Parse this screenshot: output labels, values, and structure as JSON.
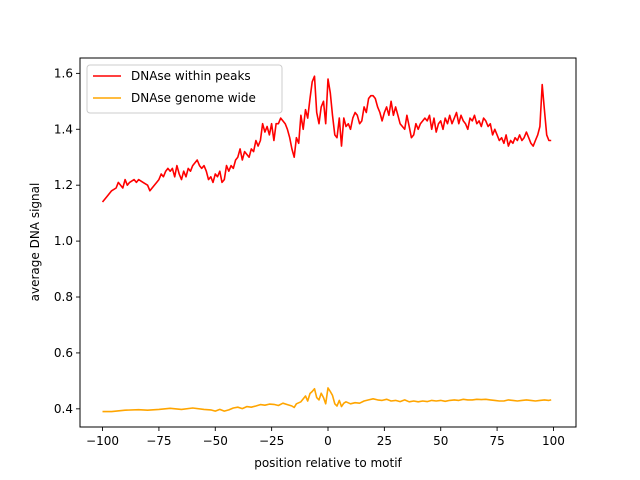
{
  "chart_data": {
    "type": "line",
    "title": "",
    "xlabel": "position relative to motif",
    "ylabel": "average DNA signal",
    "xlim": [
      -110,
      110
    ],
    "ylim": [
      0.335,
      1.655
    ],
    "xticks": [
      -100,
      -75,
      -50,
      -25,
      0,
      25,
      50,
      75,
      100
    ],
    "yticks": [
      0.4,
      0.6,
      0.8,
      1.0,
      1.2,
      1.4,
      1.6
    ],
    "xtick_labels": [
      "−100",
      "−75",
      "−50",
      "−25",
      "0",
      "25",
      "50",
      "75",
      "100"
    ],
    "ytick_labels": [
      "0.4",
      "0.6",
      "0.8",
      "1.0",
      "1.2",
      "1.4",
      "1.6"
    ],
    "grid": false,
    "legend_position": "top-left",
    "series": [
      {
        "name": "DNAse within peaks",
        "color": "#ff0000",
        "points": [
          [
            -100,
            1.14
          ],
          [
            -98,
            1.16
          ],
          [
            -96,
            1.18
          ],
          [
            -94,
            1.19
          ],
          [
            -93,
            1.21
          ],
          [
            -92,
            1.2
          ],
          [
            -91,
            1.19
          ],
          [
            -90,
            1.22
          ],
          [
            -89,
            1.2
          ],
          [
            -88,
            1.21
          ],
          [
            -86,
            1.22
          ],
          [
            -85,
            1.21
          ],
          [
            -84,
            1.22
          ],
          [
            -82,
            1.21
          ],
          [
            -80,
            1.2
          ],
          [
            -79,
            1.18
          ],
          [
            -78,
            1.19
          ],
          [
            -76,
            1.21
          ],
          [
            -75,
            1.22
          ],
          [
            -74,
            1.24
          ],
          [
            -73,
            1.23
          ],
          [
            -72,
            1.25
          ],
          [
            -71,
            1.26
          ],
          [
            -70,
            1.25
          ],
          [
            -69,
            1.26
          ],
          [
            -68,
            1.23
          ],
          [
            -67,
            1.27
          ],
          [
            -66,
            1.24
          ],
          [
            -65,
            1.22
          ],
          [
            -64,
            1.25
          ],
          [
            -63,
            1.23
          ],
          [
            -62,
            1.26
          ],
          [
            -61,
            1.25
          ],
          [
            -60,
            1.27
          ],
          [
            -58,
            1.29
          ],
          [
            -57,
            1.27
          ],
          [
            -56,
            1.26
          ],
          [
            -55,
            1.27
          ],
          [
            -54,
            1.25
          ],
          [
            -53,
            1.22
          ],
          [
            -52,
            1.23
          ],
          [
            -51,
            1.21
          ],
          [
            -50,
            1.24
          ],
          [
            -49,
            1.23
          ],
          [
            -48,
            1.25
          ],
          [
            -47,
            1.21
          ],
          [
            -46,
            1.22
          ],
          [
            -45,
            1.27
          ],
          [
            -44,
            1.25
          ],
          [
            -43,
            1.27
          ],
          [
            -42,
            1.26
          ],
          [
            -41,
            1.29
          ],
          [
            -40,
            1.3
          ],
          [
            -39,
            1.33
          ],
          [
            -38,
            1.29
          ],
          [
            -37,
            1.32
          ],
          [
            -36,
            1.31
          ],
          [
            -35,
            1.3
          ],
          [
            -34,
            1.33
          ],
          [
            -33,
            1.32
          ],
          [
            -32,
            1.36
          ],
          [
            -31,
            1.34
          ],
          [
            -30,
            1.36
          ],
          [
            -29,
            1.42
          ],
          [
            -28,
            1.39
          ],
          [
            -27,
            1.41
          ],
          [
            -26,
            1.38
          ],
          [
            -25,
            1.42
          ],
          [
            -24,
            1.36
          ],
          [
            -23,
            1.42
          ],
          [
            -22,
            1.42
          ],
          [
            -21,
            1.44
          ],
          [
            -20,
            1.43
          ],
          [
            -19,
            1.42
          ],
          [
            -18,
            1.4
          ],
          [
            -17,
            1.37
          ],
          [
            -16,
            1.33
          ],
          [
            -15,
            1.3
          ],
          [
            -14,
            1.37
          ],
          [
            -13,
            1.35
          ],
          [
            -12,
            1.45
          ],
          [
            -11,
            1.4
          ],
          [
            -10,
            1.47
          ],
          [
            -9,
            1.44
          ],
          [
            -8,
            1.51
          ],
          [
            -7,
            1.57
          ],
          [
            -6,
            1.59
          ],
          [
            -5,
            1.46
          ],
          [
            -4,
            1.42
          ],
          [
            -3,
            1.48
          ],
          [
            -2,
            1.5
          ],
          [
            -1,
            1.42
          ],
          [
            0,
            1.58
          ],
          [
            1,
            1.53
          ],
          [
            2,
            1.45
          ],
          [
            3,
            1.38
          ],
          [
            4,
            1.37
          ],
          [
            5,
            1.44
          ],
          [
            6,
            1.34
          ],
          [
            7,
            1.44
          ],
          [
            8,
            1.41
          ],
          [
            9,
            1.42
          ],
          [
            10,
            1.4
          ],
          [
            11,
            1.44
          ],
          [
            12,
            1.46
          ],
          [
            13,
            1.45
          ],
          [
            14,
            1.42
          ],
          [
            15,
            1.43
          ],
          [
            16,
            1.48
          ],
          [
            17,
            1.46
          ],
          [
            18,
            1.51
          ],
          [
            19,
            1.52
          ],
          [
            20,
            1.52
          ],
          [
            21,
            1.51
          ],
          [
            22,
            1.48
          ],
          [
            23,
            1.46
          ],
          [
            24,
            1.43
          ],
          [
            25,
            1.46
          ],
          [
            26,
            1.48
          ],
          [
            27,
            1.45
          ],
          [
            28,
            1.5
          ],
          [
            29,
            1.45
          ],
          [
            30,
            1.48
          ],
          [
            31,
            1.45
          ],
          [
            32,
            1.42
          ],
          [
            33,
            1.41
          ],
          [
            34,
            1.4
          ],
          [
            35,
            1.45
          ],
          [
            36,
            1.41
          ],
          [
            37,
            1.37
          ],
          [
            38,
            1.38
          ],
          [
            39,
            1.42
          ],
          [
            40,
            1.4
          ],
          [
            41,
            1.42
          ],
          [
            42,
            1.43
          ],
          [
            43,
            1.44
          ],
          [
            44,
            1.43
          ],
          [
            45,
            1.45
          ],
          [
            46,
            1.4
          ],
          [
            47,
            1.44
          ],
          [
            48,
            1.39
          ],
          [
            49,
            1.42
          ],
          [
            50,
            1.43
          ],
          [
            51,
            1.4
          ],
          [
            52,
            1.44
          ],
          [
            53,
            1.42
          ],
          [
            54,
            1.45
          ],
          [
            55,
            1.42
          ],
          [
            56,
            1.44
          ],
          [
            57,
            1.46
          ],
          [
            58,
            1.42
          ],
          [
            59,
            1.45
          ],
          [
            60,
            1.43
          ],
          [
            61,
            1.42
          ],
          [
            62,
            1.4
          ],
          [
            63,
            1.44
          ],
          [
            64,
            1.43
          ],
          [
            65,
            1.45
          ],
          [
            66,
            1.42
          ],
          [
            67,
            1.43
          ],
          [
            68,
            1.41
          ],
          [
            69,
            1.44
          ],
          [
            70,
            1.43
          ],
          [
            71,
            1.41
          ],
          [
            72,
            1.42
          ],
          [
            73,
            1.38
          ],
          [
            74,
            1.4
          ],
          [
            75,
            1.38
          ],
          [
            76,
            1.36
          ],
          [
            77,
            1.37
          ],
          [
            78,
            1.35
          ],
          [
            79,
            1.38
          ],
          [
            80,
            1.34
          ],
          [
            81,
            1.36
          ],
          [
            82,
            1.35
          ],
          [
            83,
            1.37
          ],
          [
            84,
            1.36
          ],
          [
            85,
            1.38
          ],
          [
            86,
            1.36
          ],
          [
            87,
            1.37
          ],
          [
            88,
            1.39
          ],
          [
            89,
            1.37
          ],
          [
            90,
            1.35
          ],
          [
            91,
            1.34
          ],
          [
            92,
            1.36
          ],
          [
            93,
            1.38
          ],
          [
            94,
            1.41
          ],
          [
            95,
            1.56
          ],
          [
            96,
            1.47
          ],
          [
            97,
            1.38
          ],
          [
            98,
            1.36
          ],
          [
            99,
            1.36
          ]
        ]
      },
      {
        "name": "DNAse genome wide",
        "color": "#ffa500",
        "points": [
          [
            -100,
            0.39
          ],
          [
            -96,
            0.39
          ],
          [
            -90,
            0.395
          ],
          [
            -84,
            0.397
          ],
          [
            -80,
            0.395
          ],
          [
            -75,
            0.398
          ],
          [
            -70,
            0.402
          ],
          [
            -65,
            0.398
          ],
          [
            -60,
            0.403
          ],
          [
            -55,
            0.398
          ],
          [
            -52,
            0.396
          ],
          [
            -50,
            0.392
          ],
          [
            -48,
            0.398
          ],
          [
            -46,
            0.392
          ],
          [
            -44,
            0.396
          ],
          [
            -42,
            0.403
          ],
          [
            -40,
            0.406
          ],
          [
            -38,
            0.401
          ],
          [
            -36,
            0.408
          ],
          [
            -34,
            0.406
          ],
          [
            -32,
            0.41
          ],
          [
            -30,
            0.415
          ],
          [
            -28,
            0.413
          ],
          [
            -26,
            0.417
          ],
          [
            -24,
            0.416
          ],
          [
            -22,
            0.412
          ],
          [
            -20,
            0.42
          ],
          [
            -18,
            0.415
          ],
          [
            -16,
            0.41
          ],
          [
            -15,
            0.405
          ],
          [
            -14,
            0.418
          ],
          [
            -12,
            0.425
          ],
          [
            -10,
            0.446
          ],
          [
            -9,
            0.428
          ],
          [
            -8,
            0.455
          ],
          [
            -7,
            0.462
          ],
          [
            -6,
            0.472
          ],
          [
            -5,
            0.44
          ],
          [
            -4,
            0.432
          ],
          [
            -3,
            0.456
          ],
          [
            -2,
            0.44
          ],
          [
            -1,
            0.418
          ],
          [
            0,
            0.475
          ],
          [
            1,
            0.462
          ],
          [
            2,
            0.448
          ],
          [
            3,
            0.418
          ],
          [
            4,
            0.41
          ],
          [
            5,
            0.43
          ],
          [
            6,
            0.408
          ],
          [
            7,
            0.42
          ],
          [
            8,
            0.425
          ],
          [
            10,
            0.418
          ],
          [
            12,
            0.422
          ],
          [
            14,
            0.42
          ],
          [
            16,
            0.428
          ],
          [
            18,
            0.432
          ],
          [
            20,
            0.436
          ],
          [
            22,
            0.432
          ],
          [
            24,
            0.43
          ],
          [
            26,
            0.434
          ],
          [
            28,
            0.428
          ],
          [
            30,
            0.43
          ],
          [
            32,
            0.426
          ],
          [
            34,
            0.432
          ],
          [
            36,
            0.425
          ],
          [
            38,
            0.428
          ],
          [
            40,
            0.425
          ],
          [
            42,
            0.428
          ],
          [
            44,
            0.426
          ],
          [
            46,
            0.43
          ],
          [
            48,
            0.428
          ],
          [
            50,
            0.43
          ],
          [
            52,
            0.427
          ],
          [
            54,
            0.43
          ],
          [
            56,
            0.432
          ],
          [
            58,
            0.43
          ],
          [
            60,
            0.434
          ],
          [
            62,
            0.432
          ],
          [
            64,
            0.432
          ],
          [
            66,
            0.434
          ],
          [
            68,
            0.433
          ],
          [
            70,
            0.434
          ],
          [
            72,
            0.432
          ],
          [
            74,
            0.43
          ],
          [
            76,
            0.428
          ],
          [
            78,
            0.428
          ],
          [
            80,
            0.432
          ],
          [
            82,
            0.43
          ],
          [
            84,
            0.428
          ],
          [
            86,
            0.43
          ],
          [
            88,
            0.432
          ],
          [
            90,
            0.43
          ],
          [
            92,
            0.428
          ],
          [
            94,
            0.43
          ],
          [
            96,
            0.432
          ],
          [
            98,
            0.43
          ],
          [
            99,
            0.432
          ]
        ]
      }
    ]
  }
}
